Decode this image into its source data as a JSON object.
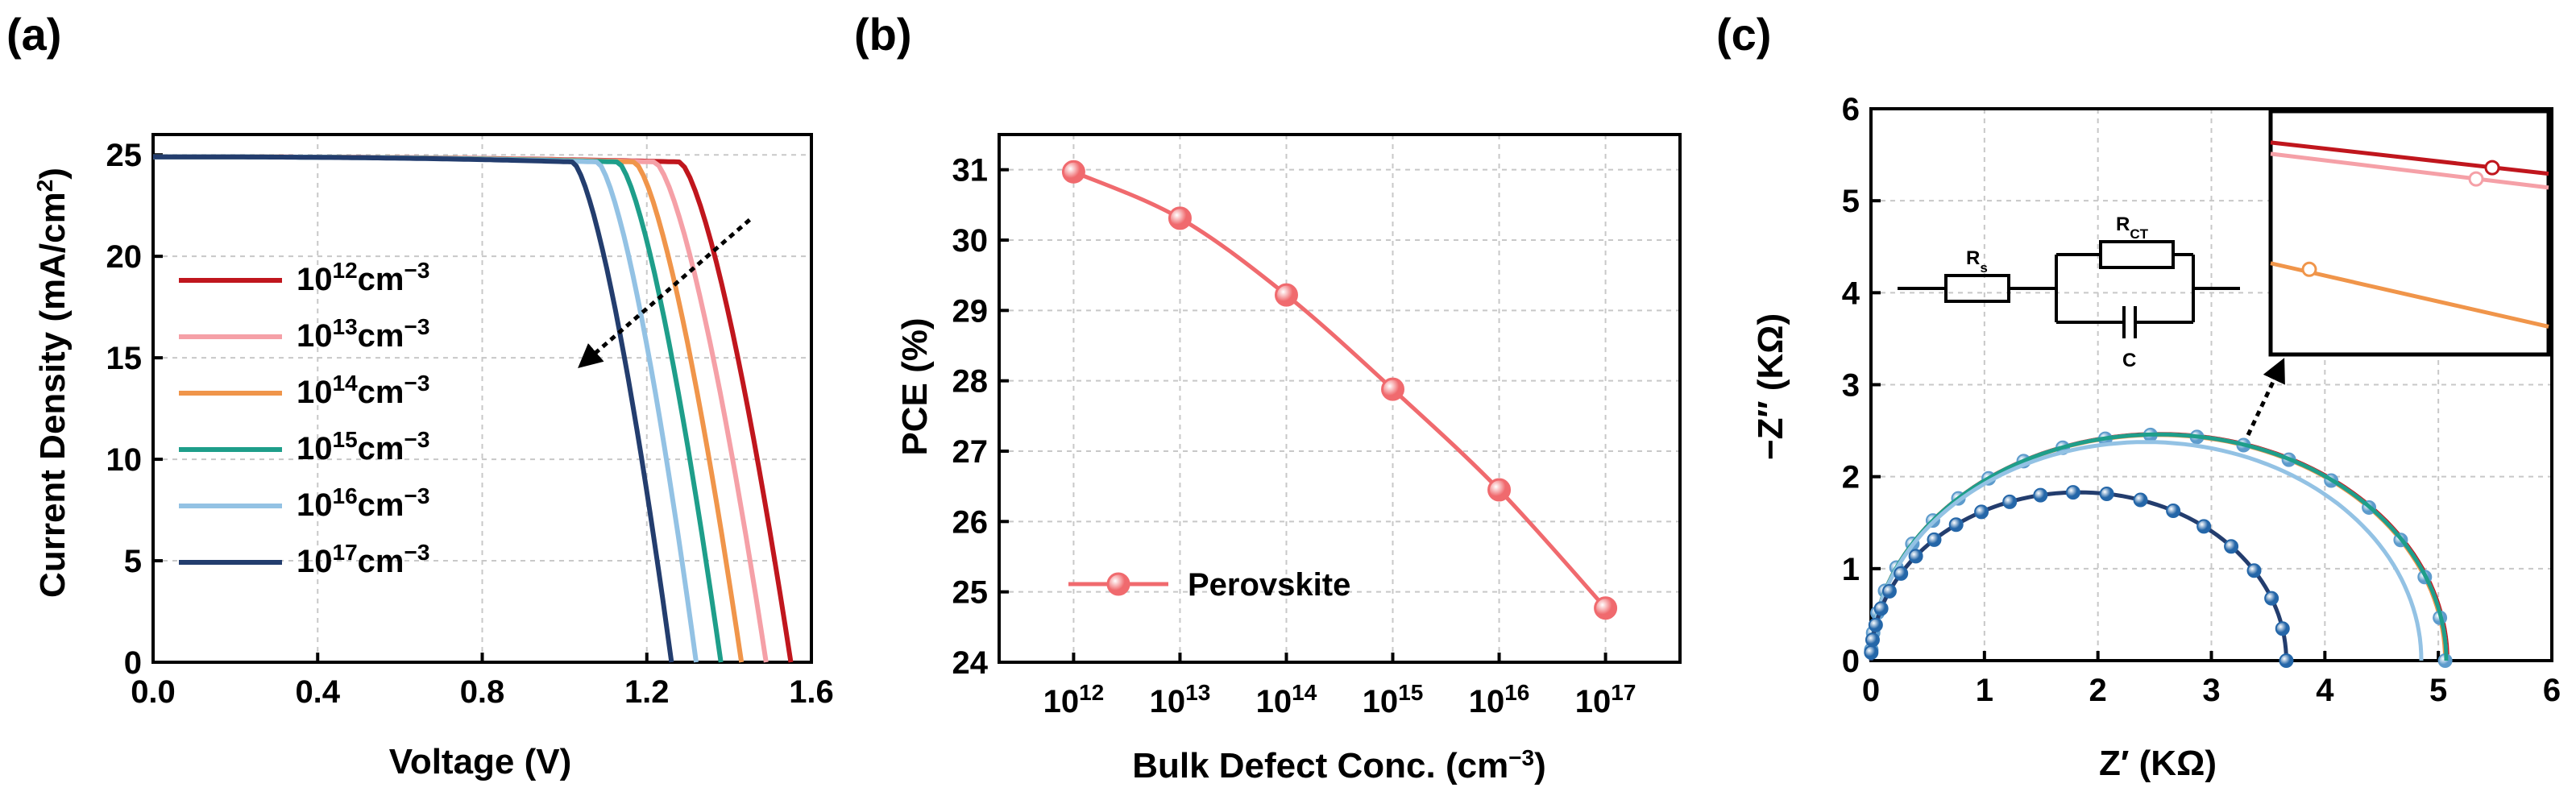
{
  "panel_labels": [
    "(a)",
    "(b)",
    "(c)"
  ],
  "colors": {
    "1e12": "#c0161d",
    "1e13": "#f5a0a7",
    "1e14": "#f0954a",
    "1e15": "#1e9e8a",
    "1e16": "#93c2e4",
    "1e17": "#233d6e",
    "pce": "#f06a6e",
    "eis_dark": "#2466a8",
    "eis_light": "#5d9bcc"
  },
  "chart_data": [
    {
      "type": "line",
      "title": "(a)",
      "xlabel": "Voltage (V)",
      "ylabel_parts": [
        "Current Density (mA/cm",
        "2",
        ")"
      ],
      "xlim": [
        0.0,
        1.6
      ],
      "ylim": [
        0,
        26
      ],
      "xticks": [
        0.0,
        0.4,
        0.8,
        1.2,
        1.6
      ],
      "xtick_labels": [
        "0.0",
        "0.4",
        "0.8",
        "1.2",
        "1.6"
      ],
      "yticks": [
        0,
        5,
        10,
        15,
        20,
        25
      ],
      "ytick_labels": [
        "0",
        "5",
        "10",
        "15",
        "20",
        "25"
      ],
      "jsc": 24.9,
      "legend_position": "center-left",
      "series": [
        {
          "name": "10^12 cm^-3",
          "base": "10",
          "exp": "12",
          "unit": "cm",
          "unit_exp": "−3",
          "voc": 1.55,
          "knee": 1.28,
          "color_key": "1e12"
        },
        {
          "name": "10^13 cm^-3",
          "base": "10",
          "exp": "13",
          "unit": "cm",
          "unit_exp": "−3",
          "voc": 1.49,
          "knee": 1.22,
          "color_key": "1e13"
        },
        {
          "name": "10^14 cm^-3",
          "base": "10",
          "exp": "14",
          "unit": "cm",
          "unit_exp": "−3",
          "voc": 1.43,
          "knee": 1.17,
          "color_key": "1e14"
        },
        {
          "name": "10^15 cm^-3",
          "base": "10",
          "exp": "15",
          "unit": "cm",
          "unit_exp": "−3",
          "voc": 1.38,
          "knee": 1.13,
          "color_key": "1e15"
        },
        {
          "name": "10^16 cm^-3",
          "base": "10",
          "exp": "16",
          "unit": "cm",
          "unit_exp": "−3",
          "voc": 1.32,
          "knee": 1.08,
          "color_key": "1e16"
        },
        {
          "name": "10^17 cm^-3",
          "base": "10",
          "exp": "17",
          "unit": "cm",
          "unit_exp": "−3",
          "voc": 1.26,
          "knee": 1.02,
          "color_key": "1e17"
        }
      ],
      "annotation": {
        "type": "arrow",
        "from": [
          1.45,
          21.8
        ],
        "to": [
          1.05,
          14.8
        ]
      }
    },
    {
      "type": "line",
      "title": "(b)",
      "xlabel_parts": [
        "Bulk Defect Conc. (cm",
        "−3",
        ")"
      ],
      "ylabel": "PCE (%)",
      "xlim": [
        11.3,
        17.7
      ],
      "ylim": [
        24,
        31.5
      ],
      "xticks": [
        12,
        13,
        14,
        15,
        16,
        17
      ],
      "xtick_labels": [
        {
          "base": "10",
          "exp": "12"
        },
        {
          "base": "10",
          "exp": "13"
        },
        {
          "base": "10",
          "exp": "14"
        },
        {
          "base": "10",
          "exp": "15"
        },
        {
          "base": "10",
          "exp": "16"
        },
        {
          "base": "10",
          "exp": "17"
        }
      ],
      "yticks": [
        24,
        25,
        26,
        27,
        28,
        29,
        30,
        31
      ],
      "ytick_labels": [
        "24",
        "25",
        "26",
        "27",
        "28",
        "29",
        "30",
        "31"
      ],
      "legend_position": "bottom-left",
      "series": [
        {
          "name": "Perovskite",
          "x": [
            12,
            13,
            14,
            15,
            16,
            17
          ],
          "y": [
            30.97,
            30.31,
            29.22,
            27.88,
            26.45,
            24.77
          ],
          "color_key": "pce"
        }
      ]
    },
    {
      "type": "scatter",
      "title": "(c)",
      "xlabel": "Z′ (KΩ)",
      "ylabel": "−Z″ (KΩ)",
      "xlim": [
        0,
        6
      ],
      "ylim": [
        0,
        6
      ],
      "xticks": [
        0,
        1,
        2,
        3,
        4,
        5,
        6
      ],
      "xtick_labels": [
        "0",
        "1",
        "2",
        "3",
        "4",
        "5",
        "6"
      ],
      "yticks": [
        0,
        1,
        2,
        3,
        4,
        5,
        6
      ],
      "ytick_labels": [
        "0",
        "1",
        "2",
        "3",
        "4",
        "5",
        "6"
      ],
      "series": [
        {
          "name": "10^12",
          "diameter": 5.08,
          "apex_ratio": 0.97,
          "color_key": "1e12"
        },
        {
          "name": "10^13",
          "diameter": 5.07,
          "apex_ratio": 0.97,
          "color_key": "1e13"
        },
        {
          "name": "10^14",
          "diameter": 5.06,
          "apex_ratio": 0.97,
          "color_key": "1e14"
        },
        {
          "name": "10^15",
          "diameter": 5.07,
          "apex_ratio": 0.97,
          "color_key": "1e15"
        },
        {
          "name": "10^16",
          "diameter": 4.85,
          "apex_ratio": 0.98,
          "color_key": "1e16"
        },
        {
          "name": "10^17",
          "diameter": 3.66,
          "apex_ratio": 1.0,
          "color_key": "1e17"
        }
      ],
      "circuit": {
        "r_s": {
          "base": "R",
          "sub": "s"
        },
        "r_ct": {
          "base": "R",
          "sub": "CT"
        },
        "c": "C"
      },
      "inset": {
        "type": "line",
        "lines": [
          {
            "y0": 5.44,
            "y1": 5.08,
            "color_key": "1e12"
          },
          {
            "y0": 5.31,
            "y1": 4.92,
            "color_key": "1e13"
          },
          {
            "y0": 4.05,
            "y1": 3.32,
            "color_key": "1e14"
          }
        ]
      }
    }
  ]
}
